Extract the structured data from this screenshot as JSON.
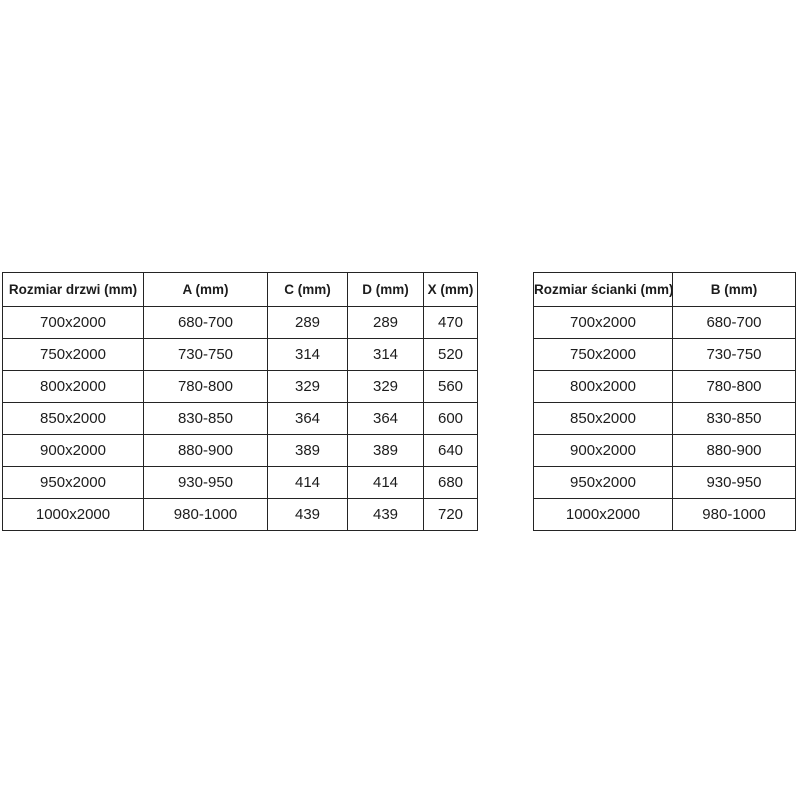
{
  "colors": {
    "background": "#ffffff",
    "border": "#242424",
    "text": "#1c1c1c"
  },
  "tables": [
    {
      "name": "door-size-table",
      "headers": [
        "Rozmiar drzwi (mm)",
        "A (mm)",
        "C (mm)",
        "D (mm)",
        "X (mm)"
      ],
      "rows": [
        [
          "700x2000",
          "680-700",
          "289",
          "289",
          "470"
        ],
        [
          "750x2000",
          "730-750",
          "314",
          "314",
          "520"
        ],
        [
          "800x2000",
          "780-800",
          "329",
          "329",
          "560"
        ],
        [
          "850x2000",
          "830-850",
          "364",
          "364",
          "600"
        ],
        [
          "900x2000",
          "880-900",
          "389",
          "389",
          "640"
        ],
        [
          "950x2000",
          "930-950",
          "414",
          "414",
          "680"
        ],
        [
          "1000x2000",
          "980-1000",
          "439",
          "439",
          "720"
        ]
      ]
    },
    {
      "name": "wall-size-table",
      "headers": [
        "Rozmiar ścianki (mm)",
        "B (mm)"
      ],
      "rows": [
        [
          "700x2000",
          "680-700"
        ],
        [
          "750x2000",
          "730-750"
        ],
        [
          "800x2000",
          "780-800"
        ],
        [
          "850x2000",
          "830-850"
        ],
        [
          "900x2000",
          "880-900"
        ],
        [
          "950x2000",
          "930-950"
        ],
        [
          "1000x2000",
          "980-1000"
        ]
      ]
    }
  ]
}
